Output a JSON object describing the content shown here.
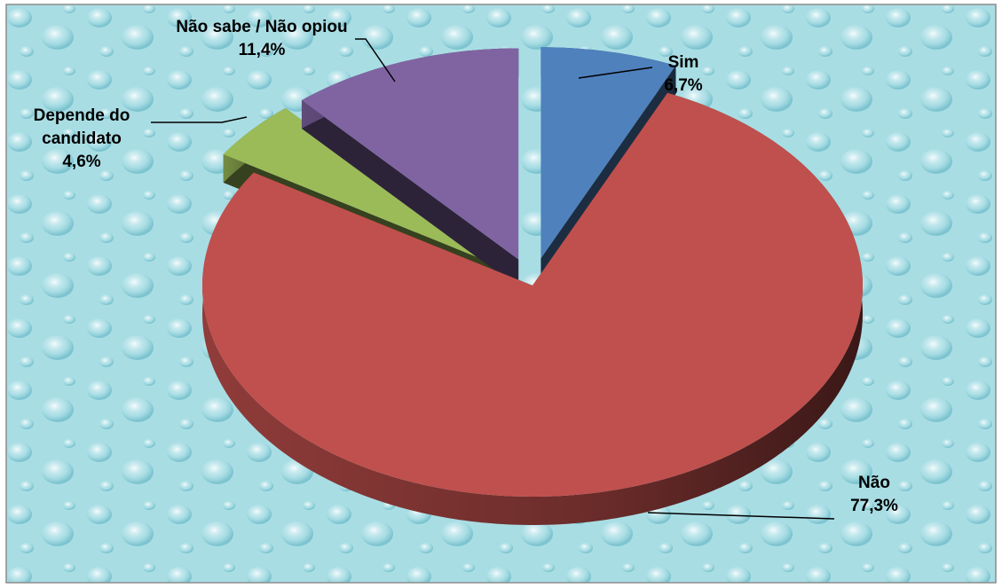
{
  "chart_data": {
    "type": "pie",
    "categories": [
      "Sim",
      "Não",
      "Depende do candidato",
      "Não sabe / Não opiou"
    ],
    "values": [
      6.7,
      77.3,
      4.6,
      11.4
    ],
    "value_labels": [
      "6,7%",
      "77,3%",
      "4,6%",
      "11,4%"
    ],
    "colors": [
      "#4f81bd",
      "#c0504d",
      "#9bbb59",
      "#8064a2"
    ]
  }
}
